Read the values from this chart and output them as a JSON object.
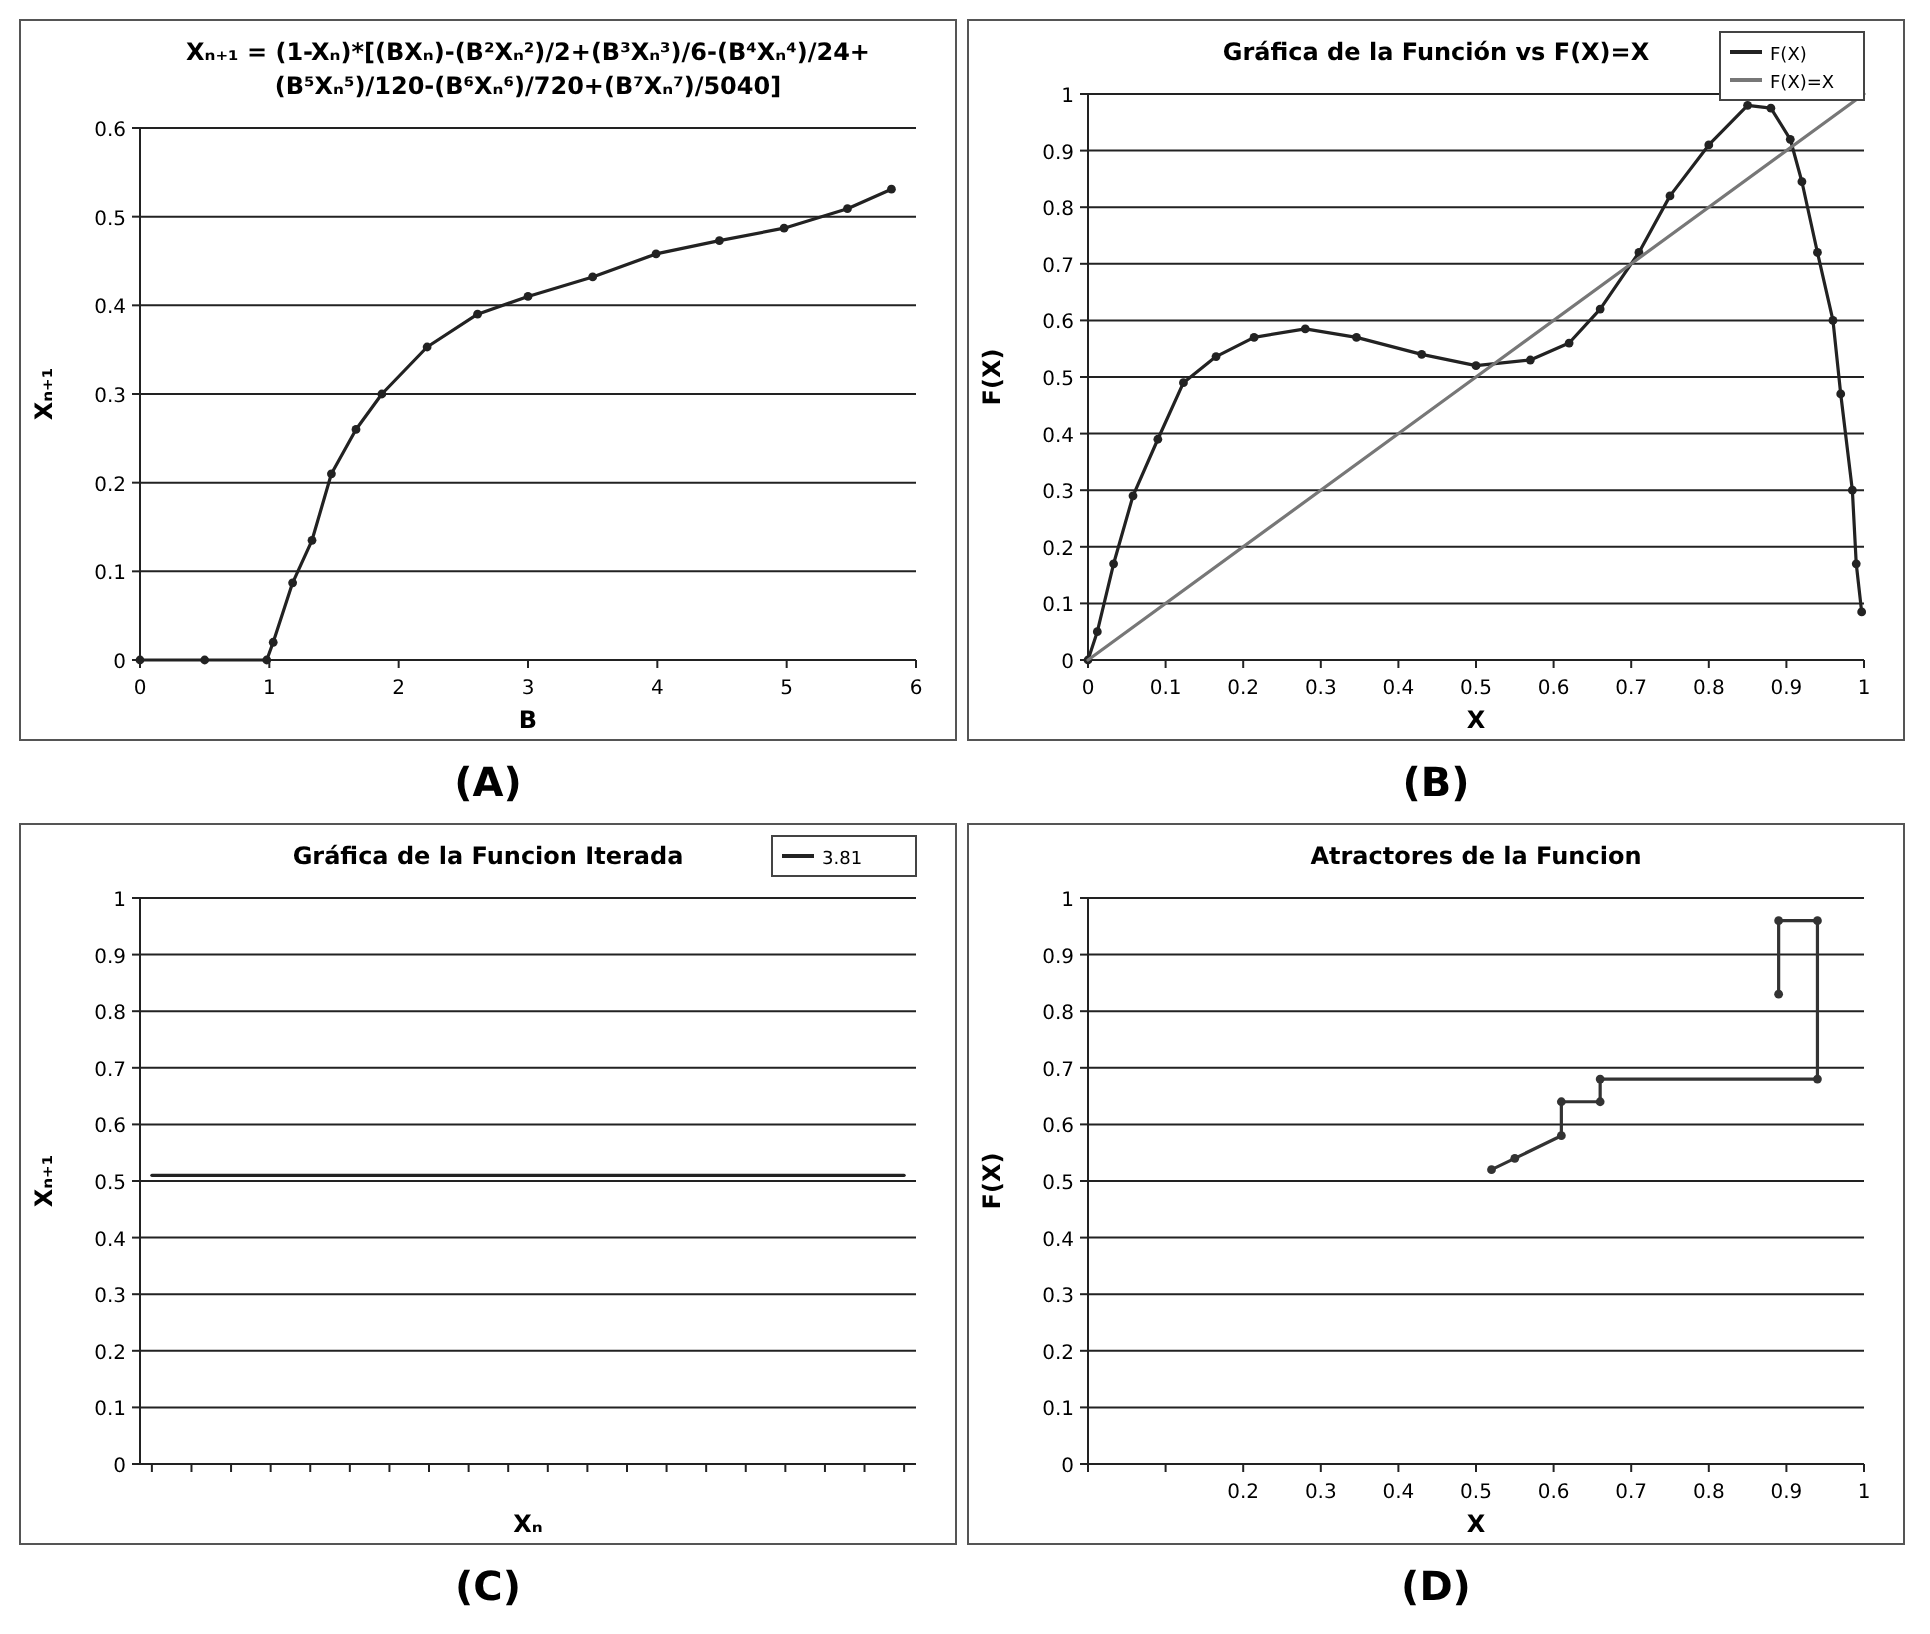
{
  "chart_data": [
    {
      "type": "line",
      "title": "Xₙ₊₁ = (1-Xₙ)*[(BXₙ)-(B²Xₙ²)/2+(B³Xₙ³)/6-(B⁴Xₙ⁴)/24+(B⁵Xₙ⁵)/120-(B⁶Xₙ⁶)/720+(B⁷Xₙ⁷)/5040]",
      "xlabel": "B",
      "ylabel": "Xₙ₊₁",
      "annotations": [
        "(A)"
      ],
      "x": [
        0,
        0.5,
        0.98,
        1.03,
        1.18,
        1.33,
        1.48,
        1.67,
        1.87,
        2.22,
        2.61,
        3.0,
        3.5,
        3.99,
        4.48,
        4.98,
        5.47,
        5.81
      ],
      "series": [
        {
          "color": "#222222",
          "values": [
            0,
            0,
            0,
            0.02,
            0.087,
            0.135,
            0.21,
            0.26,
            0.3,
            0.353,
            0.39,
            0.41,
            0.432,
            0.458,
            0.473,
            0.487,
            0.509,
            0.531
          ]
        }
      ],
      "xlim": [
        0,
        6
      ],
      "xticks": [
        0,
        1,
        2,
        3,
        4,
        5,
        6
      ],
      "ylim": [
        0,
        0.6
      ],
      "yticks": [
        0,
        0.1,
        0.2,
        0.3,
        0.4,
        0.5,
        0.6
      ],
      "grid": "y",
      "marker": "circle"
    },
    {
      "type": "line",
      "title": "Gráfica de la Función vs F(X)=X",
      "xlabel": "X",
      "ylabel": "F(X)",
      "annotations": [
        "(B)"
      ],
      "series": [
        {
          "name": "F(X)",
          "color": "#222222",
          "marker": "circle",
          "x": [
            0,
            0.012,
            0.033,
            0.058,
            0.09,
            0.123,
            0.165,
            0.214,
            0.28,
            0.346,
            0.43,
            0.5,
            0.57,
            0.62,
            0.66,
            0.71,
            0.75,
            0.8,
            0.85,
            0.88,
            0.905,
            0.92,
            0.94,
            0.96,
            0.97,
            0.985,
            0.99,
            0.997
          ],
          "values": [
            0,
            0.05,
            0.17,
            0.29,
            0.39,
            0.49,
            0.536,
            0.57,
            0.585,
            0.57,
            0.54,
            0.52,
            0.53,
            0.56,
            0.62,
            0.72,
            0.82,
            0.91,
            0.98,
            0.975,
            0.92,
            0.845,
            0.72,
            0.6,
            0.47,
            0.3,
            0.17,
            0.085
          ]
        },
        {
          "name": "F(X)=X",
          "color": "#777777",
          "x": [
            0,
            0.5,
            1
          ],
          "values": [
            0,
            0.5,
            1
          ]
        }
      ],
      "xlim": [
        0,
        1
      ],
      "xticks": [
        0,
        0.1,
        0.2,
        0.3,
        0.4,
        0.5,
        0.6,
        0.7,
        0.8,
        0.9,
        1
      ],
      "ylim": [
        0,
        1
      ],
      "yticks": [
        0,
        0.1,
        0.2,
        0.3,
        0.4,
        0.5,
        0.6,
        0.7,
        0.8,
        0.9,
        1
      ],
      "grid": "y",
      "legend": "top right"
    },
    {
      "type": "line",
      "title": "Gráfica de la Funcion Iterada",
      "xlabel": "Xₙ",
      "ylabel": "Xₙ₊₁",
      "annotations": [
        "(C)"
      ],
      "categories": [
        null,
        null,
        null,
        null,
        null,
        null,
        null,
        null,
        null,
        null,
        null,
        null,
        null,
        null,
        null,
        null,
        null,
        null,
        null,
        null
      ],
      "series": [
        {
          "name": "3.81",
          "color": "#222222",
          "values": [
            0.51,
            0.51,
            0.51,
            0.51,
            0.51,
            0.51,
            0.51,
            0.51,
            0.51,
            0.51,
            0.51,
            0.51,
            0.51,
            0.51,
            0.51,
            0.51,
            0.51,
            0.51,
            0.51,
            0.51
          ]
        }
      ],
      "ylim": [
        0,
        1
      ],
      "yticks": [
        0,
        0.1,
        0.2,
        0.3,
        0.4,
        0.5,
        0.6,
        0.7,
        0.8,
        0.9,
        1
      ],
      "grid": "y",
      "legend": "top right"
    },
    {
      "type": "line",
      "title": "Atractores de la Funcion",
      "xlabel": "X",
      "ylabel": "F(X)",
      "annotations": [
        "(D)"
      ],
      "x": [
        0.52,
        0.55,
        0.61,
        0.61,
        0.66,
        0.66,
        0.94,
        0.94,
        0.89,
        0.89
      ],
      "series": [
        {
          "color": "#333333",
          "values": [
            0.52,
            0.54,
            0.58,
            0.64,
            0.64,
            0.68,
            0.68,
            0.96,
            0.96,
            0.83
          ]
        }
      ],
      "xlim": [
        0,
        1
      ],
      "xticks": [
        {
          "value": 0,
          "label": null
        },
        {
          "value": 0.1,
          "label": null
        },
        0.2,
        0.3,
        0.4,
        0.5,
        0.6,
        0.7,
        0.8,
        0.9,
        1
      ],
      "ylim": [
        0,
        1
      ],
      "yticks": [
        0,
        0.1,
        0.2,
        0.3,
        0.4,
        0.5,
        0.6,
        0.7,
        0.8,
        0.9,
        1
      ],
      "grid": "y",
      "marker": "circle"
    }
  ]
}
